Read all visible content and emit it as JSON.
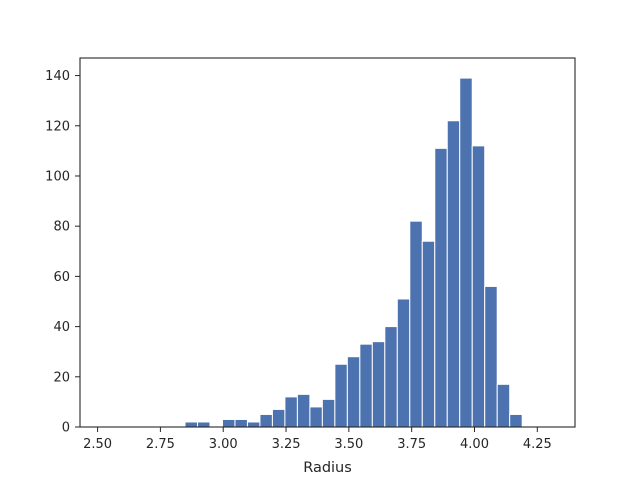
{
  "chart_data": {
    "type": "bar",
    "title": "",
    "xlabel": "Radius",
    "ylabel": "",
    "xlim": [
      2.43,
      4.4
    ],
    "ylim": [
      0,
      147
    ],
    "grid": false,
    "bar_color": "#4c72b0",
    "bin_start": 2.5,
    "bin_width": 0.0497,
    "values": [
      0,
      0,
      0,
      0,
      0,
      0,
      0,
      2,
      2,
      0,
      3,
      3,
      2,
      5,
      7,
      12,
      13,
      8,
      11,
      25,
      28,
      33,
      34,
      40,
      51,
      82,
      74,
      111,
      122,
      139,
      112,
      56,
      17,
      5
    ],
    "x_ticks": [
      2.5,
      2.75,
      3.0,
      3.25,
      3.5,
      3.75,
      4.0,
      4.25
    ],
    "x_tick_labels": [
      "2.50",
      "2.75",
      "3.00",
      "3.25",
      "3.50",
      "3.75",
      "4.00",
      "4.25"
    ],
    "y_ticks": [
      0,
      20,
      40,
      60,
      80,
      100,
      120,
      140
    ],
    "y_tick_labels": [
      "0",
      "20",
      "40",
      "60",
      "80",
      "100",
      "120",
      "140"
    ]
  }
}
